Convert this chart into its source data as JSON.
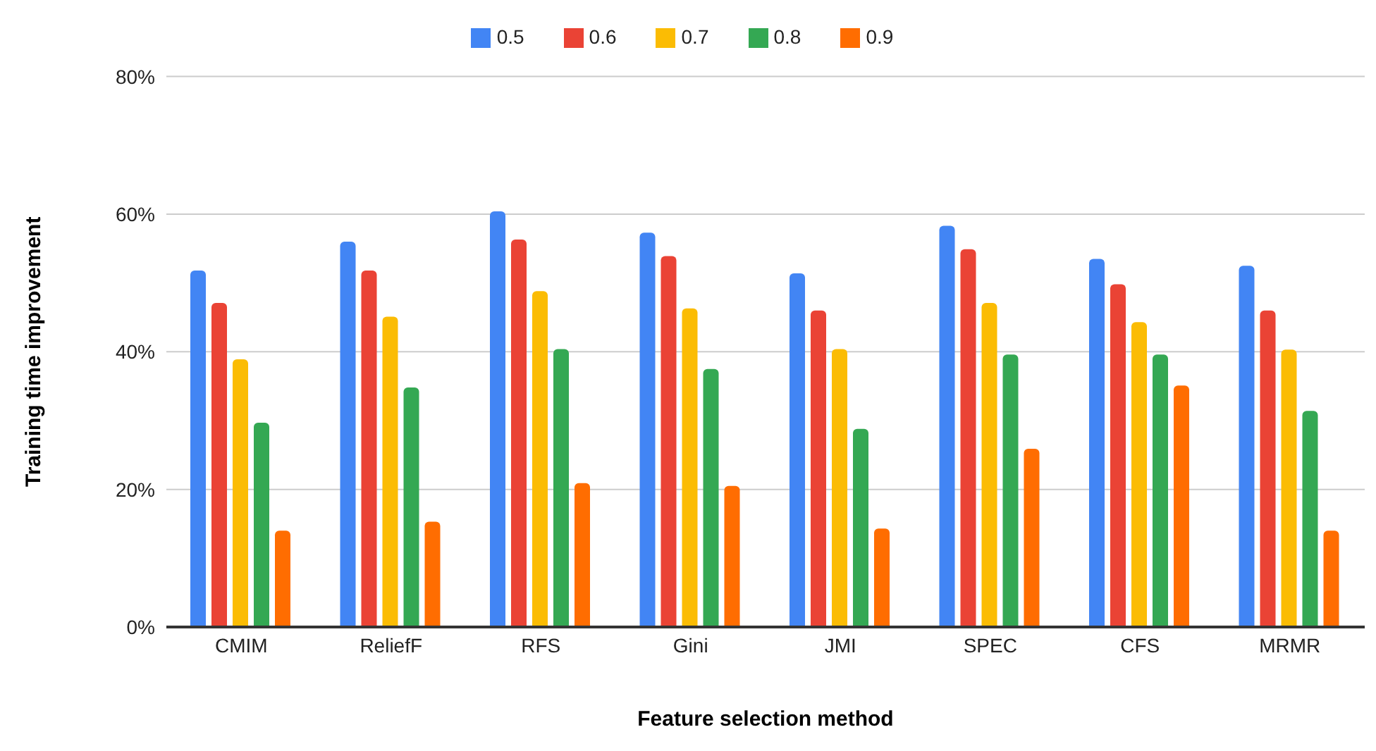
{
  "chart_data": {
    "type": "bar",
    "xlabel": "Feature selection method",
    "ylabel": "Training time improvement",
    "categories": [
      "CMIM",
      "ReliefF",
      "RFS",
      "Gini",
      "JMI",
      "SPEC",
      "CFS",
      "MRMR"
    ],
    "series": [
      {
        "name": "0.5",
        "color": "#4285f4",
        "values": [
          51.8,
          56.0,
          60.4,
          57.3,
          51.4,
          58.3,
          53.5,
          52.5
        ]
      },
      {
        "name": "0.6",
        "color": "#ea4335",
        "values": [
          47.1,
          51.8,
          56.3,
          53.9,
          46.0,
          54.9,
          49.8,
          46.0
        ]
      },
      {
        "name": "0.7",
        "color": "#fbbc04",
        "values": [
          38.9,
          45.1,
          48.8,
          46.3,
          40.4,
          47.1,
          44.3,
          40.3
        ]
      },
      {
        "name": "0.8",
        "color": "#34a853",
        "values": [
          29.7,
          34.8,
          40.4,
          37.5,
          28.8,
          39.6,
          39.6,
          31.4
        ]
      },
      {
        "name": "0.9",
        "color": "#ff6d01",
        "values": [
          14.0,
          15.3,
          20.9,
          20.5,
          14.3,
          25.9,
          35.1,
          14.0
        ]
      }
    ],
    "ylim": [
      0,
      80
    ],
    "yticks": [
      {
        "value": 0,
        "label": "0%"
      },
      {
        "value": 20,
        "label": "20%"
      },
      {
        "value": 40,
        "label": "40%"
      },
      {
        "value": 60,
        "label": "60%"
      },
      {
        "value": 80,
        "label": "80%"
      }
    ],
    "grid": "y",
    "legend": "top"
  }
}
